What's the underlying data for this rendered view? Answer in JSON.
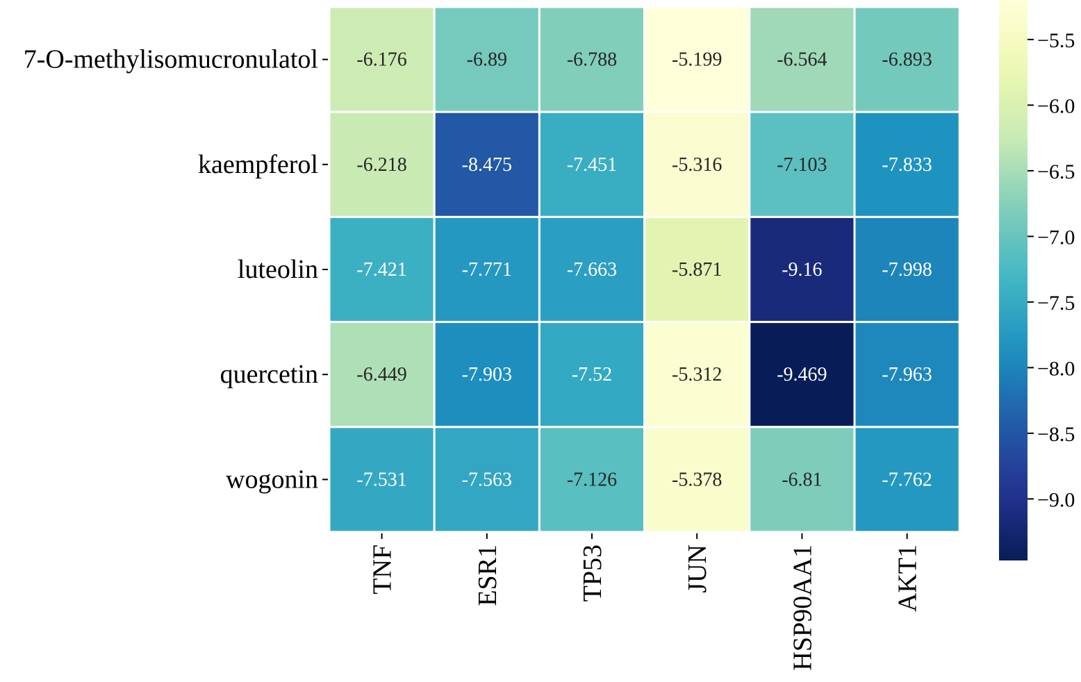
{
  "chart_data": {
    "type": "heatmap",
    "title": "",
    "xlabel": "",
    "ylabel": "",
    "columns": [
      "TNF",
      "ESR1",
      "TP53",
      "JUN",
      "HSP90AA1",
      "AKT1"
    ],
    "rows": [
      "7-O-methylisomucronulatol",
      "kaempferol",
      "luteolin",
      "quercetin",
      "wogonin"
    ],
    "values": [
      [
        -6.176,
        -6.89,
        -6.788,
        -5.199,
        -6.564,
        -6.893
      ],
      [
        -6.218,
        -8.475,
        -7.451,
        -5.316,
        -7.103,
        -7.833
      ],
      [
        -7.421,
        -7.771,
        -7.663,
        -5.871,
        -9.16,
        -7.998
      ],
      [
        -6.449,
        -7.903,
        -7.52,
        -5.312,
        -9.469,
        -7.963
      ],
      [
        -7.531,
        -7.563,
        -7.126,
        -5.378,
        -6.81,
        -7.762
      ]
    ],
    "value_labels": [
      [
        "-6.176",
        "-6.89",
        "-6.788",
        "-5.199",
        "-6.564",
        "-6.893"
      ],
      [
        "-6.218",
        "-8.475",
        "-7.451",
        "-5.316",
        "-7.103",
        "-7.833"
      ],
      [
        "-7.421",
        "-7.771",
        "-7.663",
        "-5.871",
        "-9.16",
        "-7.998"
      ],
      [
        "-6.449",
        "-7.903",
        "-7.52",
        "-5.312",
        "-9.469",
        "-7.963"
      ],
      [
        "-7.531",
        "-7.563",
        "-7.126",
        "-5.378",
        "-6.81",
        "-7.762"
      ]
    ],
    "colormap": "YlGnBu_r",
    "colorbar": {
      "vmin": -9.469,
      "vmax": -5.199,
      "ticks": [
        -5.5,
        -6.0,
        -6.5,
        -7.0,
        -7.5,
        -8.0,
        -8.5,
        -9.0
      ],
      "tick_labels": [
        "−5.5",
        "−6.0",
        "−6.5",
        "−7.0",
        "−7.5",
        "−8.0",
        "−8.5",
        "−9.0"
      ]
    },
    "annotation_text_colors": {
      "dark": "#262626",
      "light": "#ffffff"
    },
    "cell_border_color": "#ffffff"
  }
}
